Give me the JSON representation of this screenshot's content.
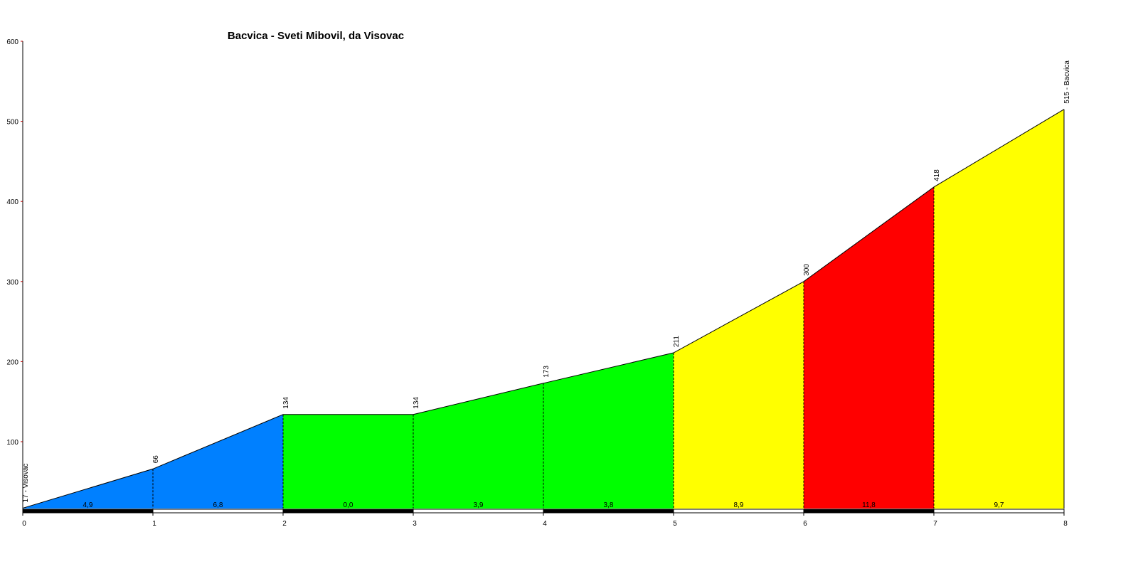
{
  "chart_data": {
    "type": "area",
    "title": "Bacvica - Sveti Mibovil, da Visovac",
    "x": [
      0,
      1,
      2,
      3,
      4,
      5,
      6,
      7,
      8
    ],
    "elevations": [
      17,
      66,
      134,
      134,
      173,
      211,
      300,
      418,
      515
    ],
    "point_labels": [
      "17 - Visovac",
      "66",
      "134",
      "134",
      "173",
      "211",
      "300",
      "418",
      "515 - Bacvica"
    ],
    "segments": [
      {
        "from": 0,
        "to": 1,
        "grade": "4,9",
        "color": "#0080ff"
      },
      {
        "from": 1,
        "to": 2,
        "grade": "6,8",
        "color": "#0080ff"
      },
      {
        "from": 2,
        "to": 3,
        "grade": "0,0",
        "color": "#00ff00"
      },
      {
        "from": 3,
        "to": 4,
        "grade": "3,9",
        "color": "#00ff00"
      },
      {
        "from": 4,
        "to": 5,
        "grade": "3,8",
        "color": "#00ff00"
      },
      {
        "from": 5,
        "to": 6,
        "grade": "8,9",
        "color": "#ffff00"
      },
      {
        "from": 6,
        "to": 7,
        "grade": "11,8",
        "color": "#ff0000"
      },
      {
        "from": 7,
        "to": 8,
        "grade": "9,7",
        "color": "#ffff00"
      }
    ],
    "x_ticks": [
      "0",
      "1",
      "2",
      "3",
      "4",
      "5",
      "6",
      "7",
      "8"
    ],
    "y_ticks": [
      100,
      200,
      300,
      400,
      500,
      600
    ],
    "xlim": [
      0,
      8
    ],
    "ylim": [
      15,
      600
    ],
    "xlabel": "",
    "ylabel": "",
    "grid": false,
    "legend": "none"
  }
}
